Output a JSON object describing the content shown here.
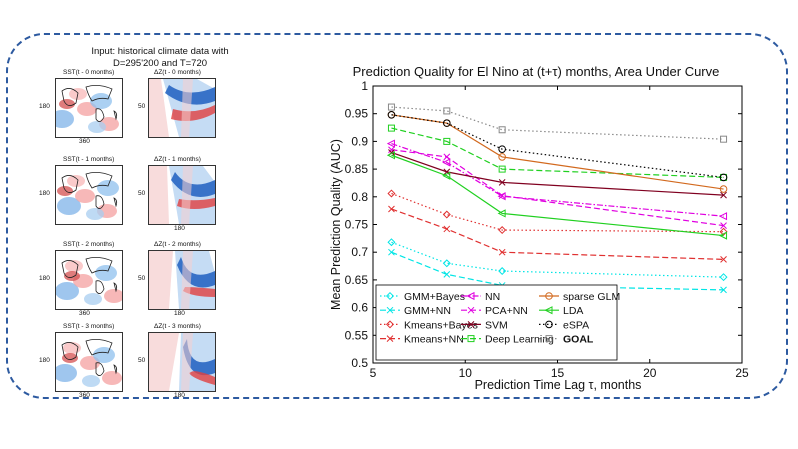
{
  "input_caption": {
    "line1": "Input: historical climate data with",
    "line2": "D=295'200 and T=720"
  },
  "panels": [
    {
      "sst_label": "SST(t - 0 months)",
      "dz_label": "ΔZ(t - 0 months)",
      "sst_y": "180",
      "sst_x": "360",
      "dz_y": "50",
      "dz_x": ""
    },
    {
      "sst_label": "SST(t - 1 months)",
      "dz_label": "ΔZ(t - 1 months)",
      "sst_y": "180",
      "sst_x": "",
      "dz_y": "50",
      "dz_x": "180"
    },
    {
      "sst_label": "SST(t - 2 months)",
      "dz_label": "ΔZ(t - 2 months)",
      "sst_y": "180",
      "sst_x": "360",
      "dz_y": "50",
      "dz_x": "180"
    },
    {
      "sst_label": "SST(t - 3 months)",
      "dz_label": "ΔZ(t - 3 months)",
      "sst_y": "180",
      "sst_x": "360",
      "dz_y": "50",
      "dz_x": "180"
    }
  ],
  "chart_data": {
    "type": "line",
    "title": "Prediction Quality for El Nino at (t+τ) months, Area Under Curve",
    "xlabel": "Prediction Time Lag τ, months",
    "ylabel": "Mean Prediction Quality (AUC)",
    "xlim": [
      5,
      25
    ],
    "ylim": [
      0.5,
      1.0
    ],
    "xticks": [
      5,
      10,
      15,
      20,
      25
    ],
    "yticks": [
      0.5,
      0.55,
      0.6,
      0.65,
      0.7,
      0.75,
      0.8,
      0.85,
      0.9,
      0.95,
      1.0
    ],
    "x": [
      6,
      9,
      12,
      24
    ],
    "series": [
      {
        "name": "GMM+Bayes",
        "color": "#00e5e5",
        "dash": "dotted",
        "marker": "diamond",
        "values": [
          0.718,
          0.68,
          0.666,
          0.655
        ]
      },
      {
        "name": "GMM+NN",
        "color": "#00e5e5",
        "dash": "dashed",
        "marker": "x",
        "values": [
          0.7,
          0.66,
          0.64,
          0.632
        ]
      },
      {
        "name": "Kmeans+Bayes",
        "color": "#e03030",
        "dash": "dotted",
        "marker": "diamond",
        "values": [
          0.806,
          0.768,
          0.74,
          0.737
        ]
      },
      {
        "name": "Kmeans+NN",
        "color": "#e03030",
        "dash": "dashed",
        "marker": "x",
        "values": [
          0.778,
          0.742,
          0.7,
          0.687
        ]
      },
      {
        "name": "NN",
        "color": "#e000e0",
        "dash": "dashdot",
        "marker": "tri",
        "values": [
          0.896,
          0.862,
          0.801,
          0.765
        ]
      },
      {
        "name": "PCA+NN",
        "color": "#e000e0",
        "dash": "dashed",
        "marker": "x",
        "values": [
          0.885,
          0.872,
          0.802,
          0.748
        ]
      },
      {
        "name": "SVM",
        "color": "#800020",
        "dash": "solid",
        "marker": "x",
        "values": [
          0.88,
          0.845,
          0.826,
          0.803
        ]
      },
      {
        "name": "Deep Learning",
        "color": "#20d020",
        "dash": "dashed",
        "marker": "square",
        "values": [
          0.924,
          0.9,
          0.85,
          0.835
        ]
      },
      {
        "name": "sparse GLM",
        "color": "#d2691e",
        "dash": "solid",
        "marker": "circle",
        "values": [
          0.948,
          0.933,
          0.872,
          0.814
        ]
      },
      {
        "name": "LDA",
        "color": "#20d020",
        "dash": "solid",
        "marker": "tri",
        "values": [
          0.875,
          0.838,
          0.77,
          0.73
        ]
      },
      {
        "name": "eSPA",
        "color": "#000000",
        "dash": "dotted",
        "marker": "circle",
        "values": [
          0.948,
          0.933,
          0.886,
          0.835
        ]
      },
      {
        "name": "GOAL",
        "color": "#888888",
        "dash": "dotted",
        "marker": "square",
        "values": [
          0.962,
          0.955,
          0.921,
          0.904
        ]
      }
    ]
  }
}
